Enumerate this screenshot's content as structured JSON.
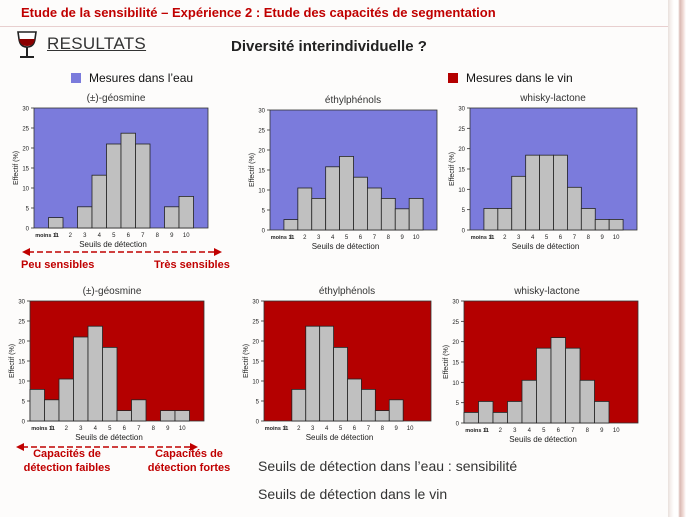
{
  "slide": {
    "title": "Etude de la sensibilité – Expérience 2 : Etude des capacités de segmentation",
    "results": "RESULTATS",
    "subtitle": "Diversité interindividuelle ?"
  },
  "legend": {
    "water": {
      "label": "Mesures dans l’eau",
      "color": "#7b7bdc"
    },
    "wine": {
      "label": "Mesures dans le vin",
      "color": "#b40000"
    }
  },
  "annotations": {
    "low_sens": "Peu sensibles",
    "high_sens": "Très sensibles",
    "low_cap": "Capacités de détection faibles",
    "high_cap": "Capacités de détection fortes",
    "note1": "Seuils de détection dans l’eau : sensibilité",
    "note2": "Seuils de détection dans le vin"
  },
  "colors": {
    "accent": "#c00000",
    "bar": "#c0c0c0",
    "bar_edge": "#222222"
  },
  "chart_data": [
    {
      "type": "bar",
      "title": "(±)-géosmine",
      "medium": "eau",
      "categories": [
        "moins 11",
        "1",
        "2",
        "3",
        "4",
        "5",
        "6",
        "7",
        "8",
        "9",
        "10"
      ],
      "values": [
        0,
        2.6,
        0,
        5.3,
        13.2,
        21,
        23.7,
        21,
        0,
        5.3,
        7.9
      ],
      "xlabel": "Seuils de détection",
      "ylabel": "Effectif (%)",
      "ylim": [
        0,
        30
      ],
      "yticks": [
        0,
        5,
        10,
        15,
        20,
        25,
        30
      ]
    },
    {
      "type": "bar",
      "title": "éthylphénols",
      "medium": "eau",
      "categories": [
        "moins 11",
        "1",
        "2",
        "3",
        "4",
        "5",
        "6",
        "7",
        "8",
        "9",
        "10"
      ],
      "values": [
        0,
        2.6,
        10.5,
        7.9,
        15.8,
        18.4,
        13.2,
        10.5,
        7.9,
        5.3,
        7.9
      ],
      "xlabel": "Seuils de détection",
      "ylabel": "Effectif (%)",
      "ylim": [
        0,
        30
      ],
      "yticks": [
        0,
        5,
        10,
        15,
        20,
        25,
        30
      ]
    },
    {
      "type": "bar",
      "title": "whisky-lactone",
      "medium": "eau",
      "categories": [
        "moins 11",
        "1",
        "2",
        "3",
        "4",
        "5",
        "6",
        "7",
        "8",
        "9",
        "10"
      ],
      "values": [
        0,
        5.3,
        5.3,
        13.2,
        18.4,
        18.4,
        18.4,
        10.5,
        5.3,
        2.6,
        2.6
      ],
      "xlabel": "Seuils de détection",
      "ylabel": "Effectif (%)",
      "ylim": [
        0,
        30
      ],
      "yticks": [
        0,
        5,
        10,
        15,
        20,
        25,
        30
      ]
    },
    {
      "type": "bar",
      "title": "(±)-géosmine",
      "medium": "vin",
      "categories": [
        "moins 11",
        "1",
        "2",
        "3",
        "4",
        "5",
        "6",
        "7",
        "8",
        "9",
        "10"
      ],
      "values": [
        7.9,
        5.3,
        10.5,
        21,
        23.7,
        18.4,
        2.6,
        5.3,
        0,
        2.6,
        2.6
      ],
      "xlabel": "Seuils de détection",
      "ylabel": "Effectif (%)",
      "ylim": [
        0,
        30
      ],
      "yticks": [
        0,
        5,
        10,
        15,
        20,
        25,
        30
      ]
    },
    {
      "type": "bar",
      "title": "éthylphénols",
      "medium": "vin",
      "categories": [
        "moins 11",
        "1",
        "2",
        "3",
        "4",
        "5",
        "6",
        "7",
        "8",
        "9",
        "10"
      ],
      "values": [
        0,
        0,
        7.9,
        23.7,
        23.7,
        18.4,
        10.5,
        7.9,
        2.6,
        5.3,
        0
      ],
      "xlabel": "Seuils de détection",
      "ylabel": "Effectif (%)",
      "ylim": [
        0,
        30
      ],
      "yticks": [
        0,
        5,
        10,
        15,
        20,
        25,
        30
      ]
    },
    {
      "type": "bar",
      "title": "whisky-lactone",
      "medium": "vin",
      "categories": [
        "moins 11",
        "1",
        "2",
        "3",
        "4",
        "5",
        "6",
        "7",
        "8",
        "9",
        "10"
      ],
      "values": [
        2.6,
        5.3,
        2.6,
        5.3,
        10.5,
        18.4,
        21,
        18.4,
        10.5,
        5.3,
        0
      ],
      "xlabel": "Seuils de détection",
      "ylabel": "Effectif (%)",
      "ylim": [
        0,
        30
      ],
      "yticks": [
        0,
        5,
        10,
        15,
        20,
        25,
        30
      ]
    }
  ]
}
